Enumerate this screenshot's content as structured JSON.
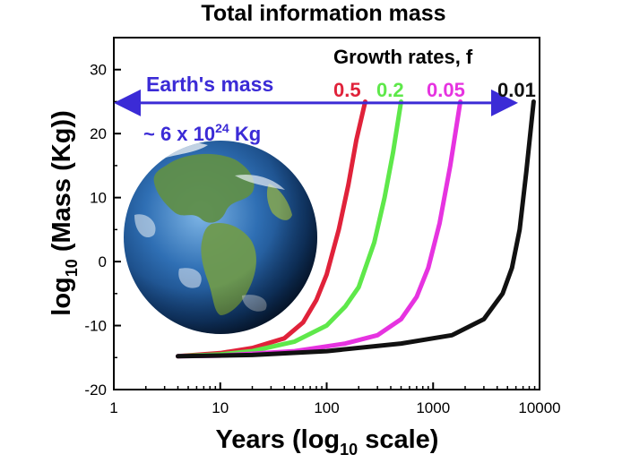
{
  "chart_data": {
    "type": "line",
    "title": "Total information mass",
    "xlabel": {
      "prefix": "Years (log",
      "sub": "10",
      "suffix": " scale)"
    },
    "ylabel": {
      "prefix": "log",
      "sub": "10",
      "suffix": " (Mass (Kg))"
    },
    "x_scale": "log",
    "xlim": [
      1,
      10000
    ],
    "ylim": [
      -20,
      35
    ],
    "x_ticks": [
      1,
      10,
      100,
      1000,
      10000
    ],
    "x_tick_labels": [
      "1",
      "10",
      "100",
      "1000",
      "10000"
    ],
    "y_ticks": [
      -20,
      -10,
      0,
      10,
      20,
      30
    ],
    "y_tick_labels": [
      "-20",
      "-10",
      "0",
      "10",
      "20",
      "30"
    ],
    "legend_title": "Growth rates, f",
    "series": [
      {
        "name": "0.5",
        "color": "#e0223a",
        "points": [
          [
            4,
            -14.8
          ],
          [
            10,
            -14.3
          ],
          [
            20,
            -13.5
          ],
          [
            40,
            -12
          ],
          [
            60,
            -9.5
          ],
          [
            80,
            -6
          ],
          [
            100,
            -2
          ],
          [
            130,
            5
          ],
          [
            160,
            12
          ],
          [
            190,
            19
          ],
          [
            230,
            25
          ]
        ]
      },
      {
        "name": "0.2",
        "color": "#5ee84a",
        "points": [
          [
            4,
            -14.8
          ],
          [
            10,
            -14.5
          ],
          [
            20,
            -14
          ],
          [
            50,
            -12.5
          ],
          [
            100,
            -10
          ],
          [
            150,
            -7
          ],
          [
            200,
            -4
          ],
          [
            280,
            3
          ],
          [
            350,
            10
          ],
          [
            420,
            17
          ],
          [
            500,
            25
          ]
        ]
      },
      {
        "name": "0.05",
        "color": "#e633e0",
        "points": [
          [
            4,
            -14.8
          ],
          [
            10,
            -14.7
          ],
          [
            50,
            -14
          ],
          [
            150,
            -12.8
          ],
          [
            300,
            -11.5
          ],
          [
            500,
            -9
          ],
          [
            700,
            -5.5
          ],
          [
            900,
            -1
          ],
          [
            1150,
            6
          ],
          [
            1450,
            15
          ],
          [
            1800,
            25
          ]
        ]
      },
      {
        "name": "0.01",
        "color": "#111111",
        "points": [
          [
            4,
            -14.8
          ],
          [
            20,
            -14.6
          ],
          [
            100,
            -14
          ],
          [
            500,
            -12.8
          ],
          [
            1500,
            -11.5
          ],
          [
            3000,
            -9
          ],
          [
            4500,
            -5
          ],
          [
            5500,
            -1
          ],
          [
            6500,
            5
          ],
          [
            7500,
            14
          ],
          [
            8800,
            25
          ]
        ]
      }
    ],
    "reference_line": {
      "label": "Earth's mass",
      "value": 24.8,
      "x_range": [
        1,
        10000
      ],
      "color": "#3b2bd6"
    },
    "annotation": {
      "prefix": "~ 6 x 10",
      "sup": "24",
      "suffix": " Kg"
    },
    "image": {
      "name": "earth"
    }
  }
}
